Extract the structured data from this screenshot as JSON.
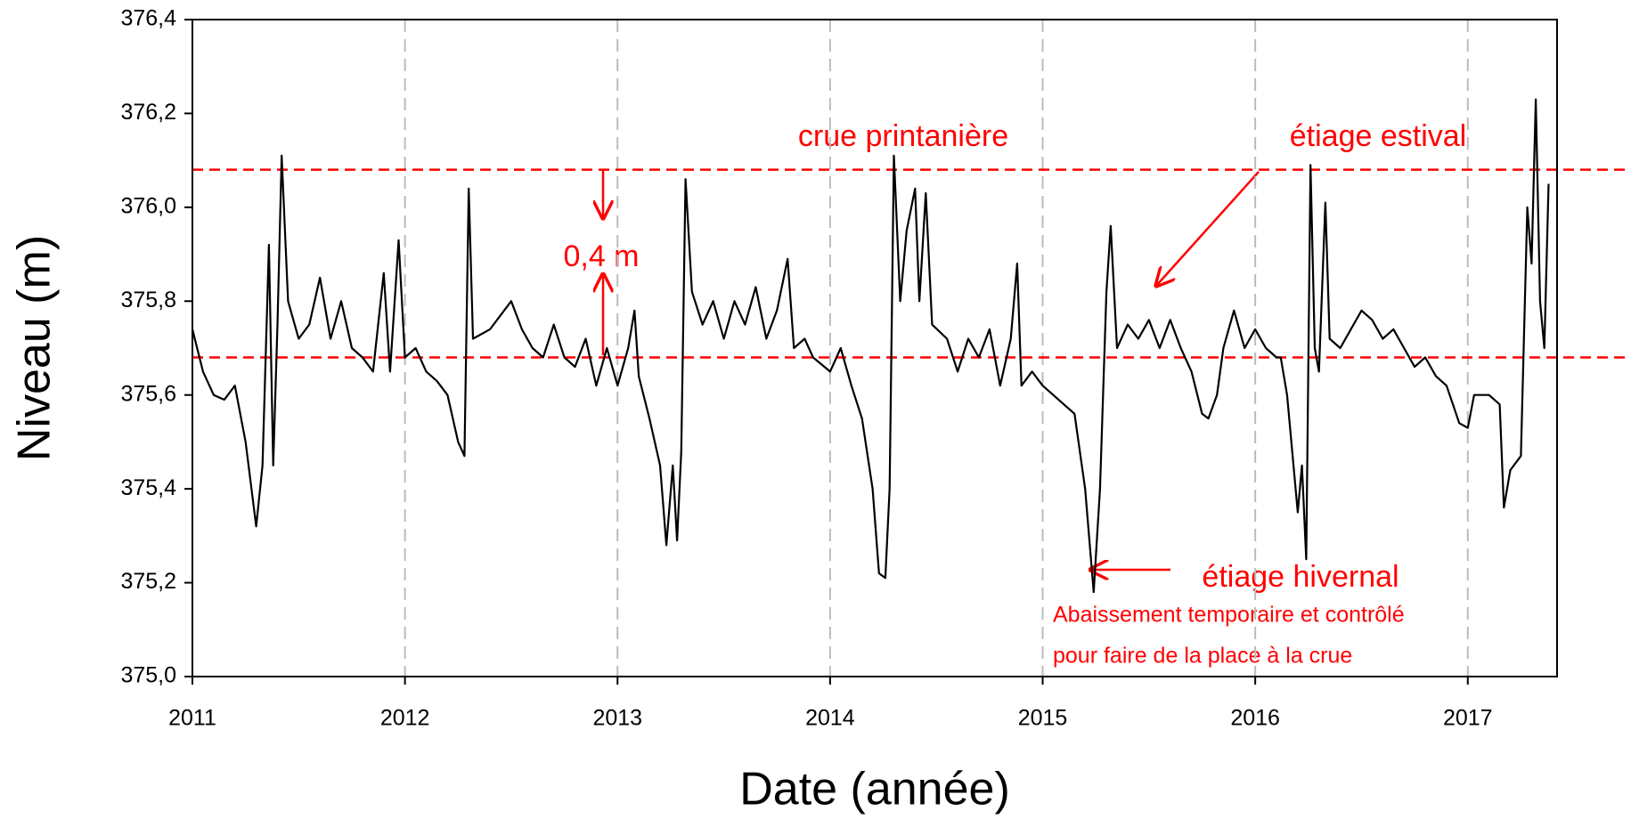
{
  "chart_data": {
    "type": "line",
    "x_label": "Date (année)",
    "y_label": "Niveau (m)",
    "xlim": [
      2011,
      2017.42
    ],
    "xticks": [
      2011,
      2012,
      2013,
      2014,
      2015,
      2016,
      2017
    ],
    "ylim": [
      375.0,
      376.4
    ],
    "yticks": [
      {
        "value": 375.0,
        "label": "375,0"
      },
      {
        "value": 375.2,
        "label": "375,2"
      },
      {
        "value": 375.4,
        "label": "375,4"
      },
      {
        "value": 375.6,
        "label": "375,6"
      },
      {
        "value": 375.8,
        "label": "375,8"
      },
      {
        "value": 376.0,
        "label": "376,0"
      },
      {
        "value": 376.2,
        "label": "376,2"
      },
      {
        "value": 376.4,
        "label": "376,4"
      }
    ],
    "grid": true,
    "color": "#000000",
    "reference_lines": [
      376.08,
      375.68
    ],
    "reference_color": "#ff0000",
    "annotations": [
      "crue printanière",
      "étiage estival",
      "0,4 m",
      "étiage hivernal",
      "Abaissement temporaire et contrôlé",
      "pour faire de la place à la crue"
    ],
    "x": [
      2011.0,
      2011.05,
      2011.1,
      2011.15,
      2011.2,
      2011.25,
      2011.3,
      2011.33,
      2011.36,
      2011.38,
      2011.4,
      2011.42,
      2011.45,
      2011.5,
      2011.55,
      2011.6,
      2011.65,
      2011.7,
      2011.75,
      2011.8,
      2011.85,
      2011.9,
      2011.93,
      2011.97,
      2012.0,
      2012.05,
      2012.1,
      2012.15,
      2012.2,
      2012.25,
      2012.28,
      2012.3,
      2012.32,
      2012.4,
      2012.5,
      2012.55,
      2012.6,
      2012.65,
      2012.7,
      2012.75,
      2012.8,
      2012.85,
      2012.9,
      2012.95,
      2013.0,
      2013.05,
      2013.08,
      2013.1,
      2013.15,
      2013.2,
      2013.23,
      2013.26,
      2013.28,
      2013.3,
      2013.32,
      2013.35,
      2013.4,
      2013.45,
      2013.5,
      2013.55,
      2013.6,
      2013.65,
      2013.7,
      2013.75,
      2013.8,
      2013.83,
      2013.88,
      2013.92,
      2014.0,
      2014.05,
      2014.1,
      2014.15,
      2014.2,
      2014.23,
      2014.26,
      2014.28,
      2014.3,
      2014.33,
      2014.36,
      2014.4,
      2014.42,
      2014.45,
      2014.48,
      2014.55,
      2014.6,
      2014.65,
      2014.7,
      2014.75,
      2014.8,
      2014.85,
      2014.88,
      2014.9,
      2014.95,
      2015.0,
      2015.05,
      2015.1,
      2015.15,
      2015.2,
      2015.24,
      2015.27,
      2015.3,
      2015.32,
      2015.35,
      2015.4,
      2015.45,
      2015.5,
      2015.55,
      2015.6,
      2015.65,
      2015.7,
      2015.75,
      2015.78,
      2015.82,
      2015.85,
      2015.9,
      2015.95,
      2016.0,
      2016.05,
      2016.1,
      2016.12,
      2016.15,
      2016.18,
      2016.2,
      2016.22,
      2016.24,
      2016.26,
      2016.28,
      2016.3,
      2016.33,
      2016.35,
      2016.4,
      2016.45,
      2016.5,
      2016.55,
      2016.6,
      2016.65,
      2016.7,
      2016.75,
      2016.8,
      2016.85,
      2016.9,
      2016.93,
      2016.96,
      2017.0,
      2017.03,
      2017.1,
      2017.15,
      2017.17,
      2017.2,
      2017.25,
      2017.28,
      2017.3,
      2017.32,
      2017.34,
      2017.36,
      2017.38
    ],
    "values": [
      375.74,
      375.65,
      375.6,
      375.59,
      375.62,
      375.5,
      375.32,
      375.45,
      375.92,
      375.45,
      375.75,
      376.11,
      375.8,
      375.72,
      375.75,
      375.85,
      375.72,
      375.8,
      375.7,
      375.68,
      375.65,
      375.86,
      375.65,
      375.93,
      375.68,
      375.7,
      375.65,
      375.63,
      375.6,
      375.5,
      375.47,
      376.04,
      375.72,
      375.74,
      375.8,
      375.74,
      375.7,
      375.68,
      375.75,
      375.68,
      375.66,
      375.72,
      375.62,
      375.7,
      375.62,
      375.7,
      375.78,
      375.64,
      375.55,
      375.45,
      375.28,
      375.45,
      375.29,
      375.48,
      376.06,
      375.82,
      375.75,
      375.8,
      375.72,
      375.8,
      375.75,
      375.83,
      375.72,
      375.78,
      375.89,
      375.7,
      375.72,
      375.68,
      375.65,
      375.7,
      375.62,
      375.55,
      375.4,
      375.22,
      375.21,
      375.4,
      376.11,
      375.8,
      375.95,
      376.04,
      375.8,
      376.03,
      375.75,
      375.72,
      375.65,
      375.72,
      375.68,
      375.74,
      375.62,
      375.72,
      375.88,
      375.62,
      375.65,
      375.62,
      375.6,
      375.58,
      375.56,
      375.4,
      375.18,
      375.4,
      375.82,
      375.96,
      375.7,
      375.75,
      375.72,
      375.76,
      375.7,
      375.76,
      375.7,
      375.65,
      375.56,
      375.55,
      375.6,
      375.7,
      375.78,
      375.7,
      375.74,
      375.7,
      375.68,
      375.68,
      375.6,
      375.45,
      375.35,
      375.45,
      375.25,
      376.09,
      375.7,
      375.65,
      376.01,
      375.72,
      375.7,
      375.74,
      375.78,
      375.76,
      375.72,
      375.74,
      375.7,
      375.66,
      375.68,
      375.64,
      375.62,
      375.58,
      375.54,
      375.53,
      375.6,
      375.6,
      375.58,
      375.36,
      375.44,
      375.47,
      376.0,
      375.88,
      376.23,
      375.8,
      375.7,
      376.05
    ]
  }
}
